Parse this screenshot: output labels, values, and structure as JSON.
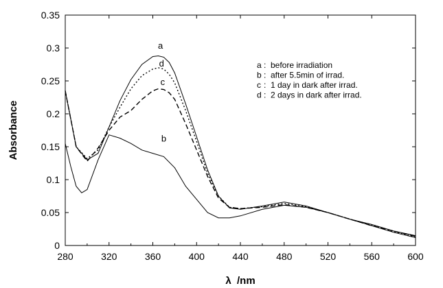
{
  "chart_data": {
    "type": "line",
    "title": "",
    "xlabel": "λ  /nm",
    "ylabel": "Absorbance",
    "xlim": [
      280,
      600
    ],
    "ylim": [
      0,
      0.35
    ],
    "xticks": [
      280,
      320,
      360,
      400,
      440,
      480,
      520,
      560,
      600
    ],
    "yticks": [
      0,
      0.05,
      0.1,
      0.15,
      0.2,
      0.25,
      0.3,
      0.35
    ],
    "ytick_labels": [
      "0",
      "0.05",
      "0.1",
      "0.15",
      "0.2",
      "0.25",
      "0.3",
      "0.35"
    ],
    "grid": false,
    "legend_position": "top-right",
    "legend": [
      {
        "key": "a",
        "text": "before irradiation"
      },
      {
        "key": "b",
        "text": "after 5.5min of irrad."
      },
      {
        "key": "c",
        "text": "1 day in dark after irrad."
      },
      {
        "key": "d",
        "text": "2 days in dark after irrad."
      }
    ],
    "series": [
      {
        "name": "a",
        "style": "solid",
        "label_at": [
          367,
          0.299
        ],
        "x": [
          280,
          290,
          300,
          310,
          320,
          330,
          340,
          350,
          360,
          365,
          370,
          375,
          380,
          390,
          400,
          410,
          420,
          430,
          440,
          460,
          480,
          500,
          520,
          540,
          560,
          580,
          600
        ],
        "y": [
          0.235,
          0.15,
          0.13,
          0.14,
          0.18,
          0.22,
          0.252,
          0.275,
          0.287,
          0.288,
          0.286,
          0.278,
          0.262,
          0.215,
          0.165,
          0.115,
          0.075,
          0.057,
          0.055,
          0.06,
          0.066,
          0.06,
          0.05,
          0.04,
          0.03,
          0.02,
          0.012
        ]
      },
      {
        "name": "b",
        "style": "solid",
        "label_at": [
          370,
          0.158
        ],
        "x": [
          280,
          285,
          290,
          295,
          300,
          310,
          320,
          330,
          340,
          350,
          360,
          370,
          380,
          390,
          400,
          410,
          420,
          430,
          440,
          460,
          480,
          500,
          520,
          540,
          560,
          580,
          600
        ],
        "y": [
          0.155,
          0.12,
          0.09,
          0.08,
          0.085,
          0.13,
          0.168,
          0.163,
          0.155,
          0.145,
          0.14,
          0.135,
          0.118,
          0.09,
          0.07,
          0.05,
          0.042,
          0.042,
          0.045,
          0.055,
          0.061,
          0.058,
          0.05,
          0.04,
          0.032,
          0.022,
          0.015
        ]
      },
      {
        "name": "c",
        "style": "dashed",
        "label_at": [
          369,
          0.244
        ],
        "x": [
          280,
          290,
          300,
          310,
          320,
          330,
          340,
          350,
          360,
          365,
          370,
          375,
          380,
          390,
          400,
          410,
          420,
          430,
          440,
          460,
          480,
          500,
          520,
          540,
          560,
          580,
          600
        ],
        "y": [
          0.235,
          0.15,
          0.128,
          0.148,
          0.175,
          0.195,
          0.205,
          0.222,
          0.235,
          0.238,
          0.237,
          0.232,
          0.222,
          0.185,
          0.145,
          0.105,
          0.072,
          0.058,
          0.056,
          0.058,
          0.062,
          0.058,
          0.05,
          0.04,
          0.03,
          0.022,
          0.014
        ]
      },
      {
        "name": "d",
        "style": "dotted",
        "label_at": [
          368,
          0.272
        ],
        "x": [
          280,
          290,
          300,
          310,
          320,
          330,
          340,
          350,
          360,
          365,
          370,
          375,
          380,
          390,
          400,
          410,
          420,
          430,
          440,
          460,
          480,
          500,
          520,
          540,
          560,
          580,
          600
        ],
        "y": [
          0.235,
          0.15,
          0.132,
          0.145,
          0.18,
          0.21,
          0.238,
          0.258,
          0.268,
          0.27,
          0.268,
          0.26,
          0.247,
          0.205,
          0.158,
          0.11,
          0.075,
          0.058,
          0.056,
          0.059,
          0.064,
          0.059,
          0.05,
          0.04,
          0.031,
          0.021,
          0.013
        ]
      }
    ]
  }
}
